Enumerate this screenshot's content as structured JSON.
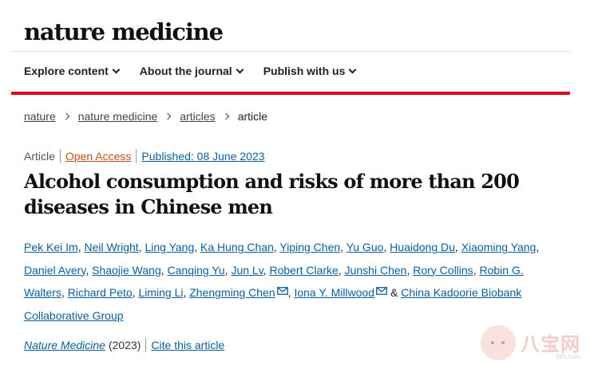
{
  "header": {
    "logo": "nature medicine",
    "nav": [
      "Explore content",
      "About the journal",
      "Publish with us"
    ]
  },
  "breadcrumb": {
    "items": [
      "nature",
      "nature medicine",
      "articles"
    ],
    "current": "article"
  },
  "meta": {
    "type": "Article",
    "access": "Open Access",
    "published": "Published: 08 June 2023"
  },
  "article": {
    "title": "Alcohol consumption and risks of more than 200 diseases in Chinese men"
  },
  "authors": [
    "Pek Kei Im",
    "Neil Wright",
    "Ling Yang",
    "Ka Hung Chan",
    "Yiping Chen",
    "Yu Guo",
    "Huaidong Du",
    "Xiaoming Yang",
    "Daniel Avery",
    "Shaojie Wang",
    "Canqing Yu",
    "Jun Lv",
    "Robert Clarke",
    "Junshi Chen",
    "Rory Collins",
    "Robin G. Walters",
    "Richard Peto",
    "Liming Li",
    "Zhengming Chen",
    "Iona Y. Millwood",
    "China Kadoorie Biobank Collaborative Group"
  ],
  "authors_ampersand": "&",
  "journal": {
    "name": "Nature Medicine",
    "year": "(2023)",
    "cite": "Cite this article"
  },
  "watermark": {
    "text": "八宝网",
    "url": "8bb.com"
  },
  "colors": {
    "accent_red": "#e0001b",
    "link_blue": "#0b5d9c",
    "open_access": "#c2511a"
  }
}
